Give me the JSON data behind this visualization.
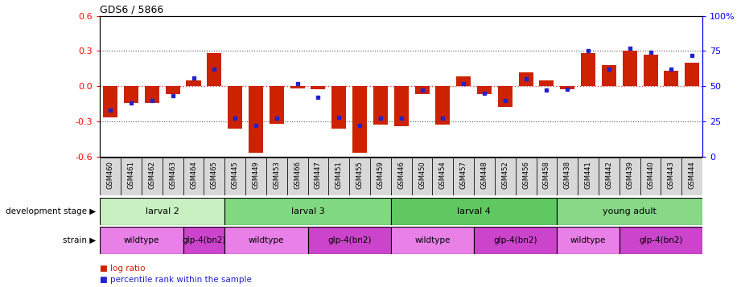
{
  "title": "GDS6 / 5866",
  "samples": [
    "GSM460",
    "GSM461",
    "GSM462",
    "GSM463",
    "GSM464",
    "GSM465",
    "GSM445",
    "GSM449",
    "GSM453",
    "GSM466",
    "GSM447",
    "GSM451",
    "GSM455",
    "GSM459",
    "GSM446",
    "GSM450",
    "GSM454",
    "GSM457",
    "GSM448",
    "GSM452",
    "GSM456",
    "GSM458",
    "GSM438",
    "GSM441",
    "GSM442",
    "GSM439",
    "GSM440",
    "GSM443",
    "GSM444"
  ],
  "log_ratio": [
    -0.27,
    -0.14,
    -0.14,
    -0.07,
    0.05,
    0.28,
    -0.36,
    -0.57,
    -0.32,
    -0.02,
    -0.03,
    -0.36,
    -0.57,
    -0.33,
    -0.34,
    -0.07,
    -0.33,
    0.08,
    -0.07,
    -0.18,
    0.12,
    0.05,
    -0.03,
    0.28,
    0.18,
    0.3,
    0.27,
    0.13,
    0.2
  ],
  "percentile": [
    33,
    38,
    40,
    43,
    56,
    62,
    27,
    22,
    27,
    52,
    42,
    28,
    22,
    27,
    27,
    47,
    27,
    52,
    45,
    40,
    55,
    47,
    48,
    75,
    62,
    77,
    74,
    62,
    72
  ],
  "dev_stages": [
    {
      "label": "larval 2",
      "start": 0,
      "end": 6,
      "color": "#c8f0c0"
    },
    {
      "label": "larval 3",
      "start": 6,
      "end": 14,
      "color": "#80d880"
    },
    {
      "label": "larval 4",
      "start": 14,
      "end": 22,
      "color": "#60c860"
    },
    {
      "label": "young adult",
      "start": 22,
      "end": 29,
      "color": "#88d888"
    }
  ],
  "strains": [
    {
      "label": "wildtype",
      "start": 0,
      "end": 4,
      "color": "#e880e8"
    },
    {
      "label": "glp-4(bn2)",
      "start": 4,
      "end": 6,
      "color": "#cc44cc"
    },
    {
      "label": "wildtype",
      "start": 6,
      "end": 10,
      "color": "#e880e8"
    },
    {
      "label": "glp-4(bn2)",
      "start": 10,
      "end": 14,
      "color": "#cc44cc"
    },
    {
      "label": "wildtype",
      "start": 14,
      "end": 18,
      "color": "#e880e8"
    },
    {
      "label": "glp-4(bn2)",
      "start": 18,
      "end": 22,
      "color": "#cc44cc"
    },
    {
      "label": "wildtype",
      "start": 22,
      "end": 25,
      "color": "#e880e8"
    },
    {
      "label": "glp-4(bn2)",
      "start": 25,
      "end": 29,
      "color": "#cc44cc"
    }
  ],
  "ylim_left": [
    -0.6,
    0.6
  ],
  "ylim_right": [
    0,
    100
  ],
  "yticks_left": [
    -0.6,
    -0.3,
    0.0,
    0.3,
    0.6
  ],
  "yticks_right": [
    0,
    25,
    50,
    75,
    100
  ],
  "bar_color": "#cc2200",
  "dot_color": "#2222cc",
  "zero_line_color": "#cc4444",
  "grid_color": "#555555",
  "bg_color": "#f0f0f0"
}
